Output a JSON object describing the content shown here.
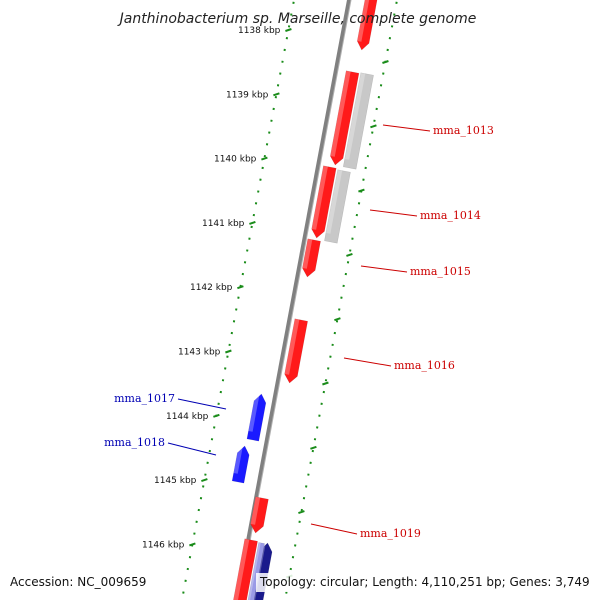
{
  "title": "Janthinobacterium sp. Marseille, complete genome",
  "accession": "Accession: NC_009659",
  "topology_info": "Topology: circular; Length: 4,110,251 bp; Genes: 3,749",
  "ticks": [
    "1138 kbp",
    "1139 kbp",
    "1140 kbp",
    "1141 kbp",
    "1142 kbp",
    "1143 kbp",
    "1144 kbp",
    "1145 kbp",
    "1146 kbp"
  ],
  "gene_labels": [
    {
      "name": "mma_1013",
      "strand": "forward"
    },
    {
      "name": "mma_1014",
      "strand": "forward"
    },
    {
      "name": "mma_1015",
      "strand": "forward"
    },
    {
      "name": "mma_1016",
      "strand": "forward"
    },
    {
      "name": "mma_1017",
      "strand": "reverse"
    },
    {
      "name": "mma_1018",
      "strand": "reverse"
    },
    {
      "name": "mma_1019",
      "strand": "forward"
    }
  ],
  "colors": {
    "forward_gene": "#ff1a1a",
    "reverse_gene": "#1a1aff",
    "other_feature": "#c8c8c8",
    "dark_reverse_feature": "#1a1a8c",
    "backbone": "#808080",
    "tick_marks": "#1a8c1a",
    "forward_label": "#cc0000",
    "reverse_label": "#0000b3"
  }
}
